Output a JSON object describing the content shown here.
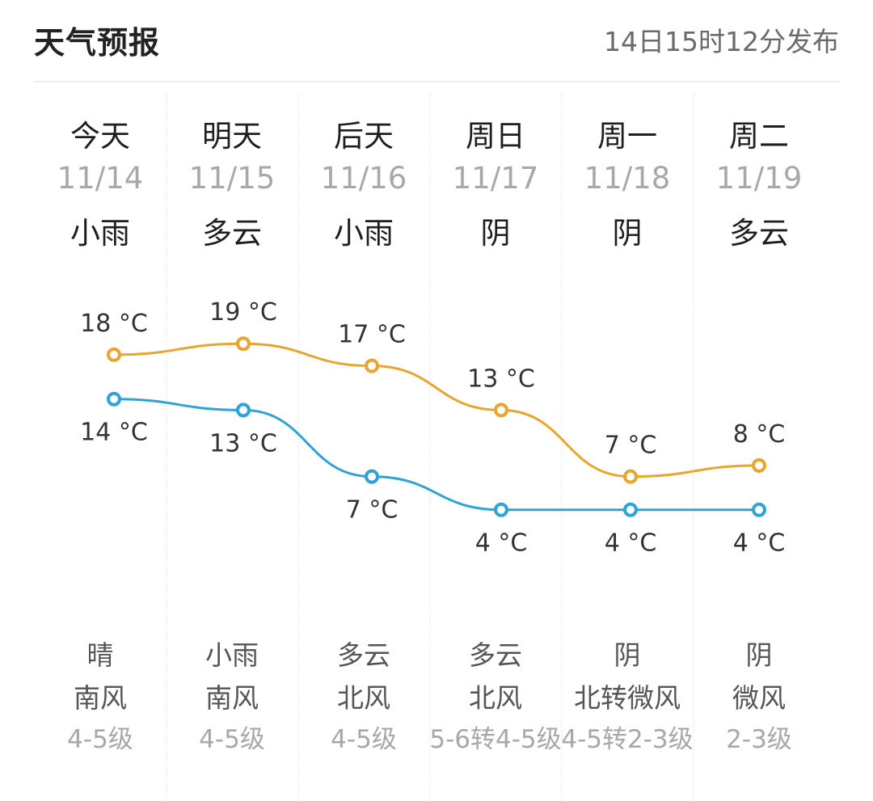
{
  "header": {
    "title": "天气预报",
    "publish_time": "14日15时12分发布"
  },
  "days": [
    {
      "day": "今天",
      "date": "11/14",
      "weather": "小雨",
      "night_weather": "晴",
      "wind_dir": "南风",
      "wind_level": "4-5级"
    },
    {
      "day": "明天",
      "date": "11/15",
      "weather": "多云",
      "night_weather": "小雨",
      "wind_dir": "南风",
      "wind_level": "4-5级"
    },
    {
      "day": "后天",
      "date": "11/16",
      "weather": "小雨",
      "night_weather": "多云",
      "wind_dir": "北风",
      "wind_level": "4-5级"
    },
    {
      "day": "周日",
      "date": "11/17",
      "weather": "阴",
      "night_weather": "多云",
      "wind_dir": "北风",
      "wind_level": "5-6转4-5级"
    },
    {
      "day": "周一",
      "date": "11/18",
      "weather": "阴",
      "night_weather": "阴",
      "wind_dir": "北转微风",
      "wind_level": "4-5转2-3级"
    },
    {
      "day": "周二",
      "date": "11/19",
      "weather": "多云",
      "night_weather": "阴",
      "wind_dir": "微风",
      "wind_level": "2-3级"
    }
  ],
  "chart_data": {
    "type": "line",
    "categories": [
      "11/14",
      "11/15",
      "11/16",
      "11/17",
      "11/18",
      "11/19"
    ],
    "unit": "°C",
    "series": [
      {
        "values": [
          18,
          19,
          17,
          13,
          7,
          8
        ],
        "color": "#e8a52f"
      },
      {
        "values": [
          14,
          13,
          7,
          4,
          4,
          4
        ],
        "color": "#2fa3d8"
      }
    ]
  }
}
